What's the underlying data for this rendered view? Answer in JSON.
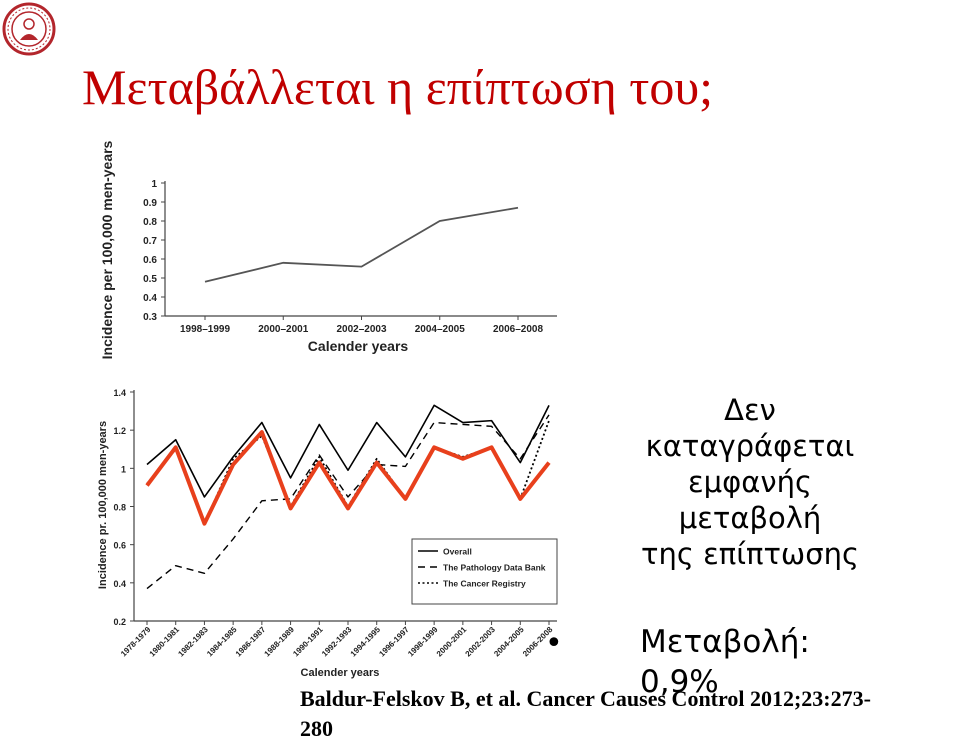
{
  "slide": {
    "title": "Μεταβάλλεται η επίπτωση του;",
    "note_lines": [
      "Δεν",
      "καταγράφεται",
      "εμφανής",
      "μεταβολή",
      "της επίπτωσης"
    ],
    "metric_label": "Μεταβολή:",
    "metric_value": "0,9%",
    "citation_line1": "Baldur-Felskov B, et al. Cancer Causes Control 2012;23:273-",
    "citation_line2": "280"
  },
  "chart_data": [
    {
      "type": "line",
      "title": "",
      "xlabel": "Calender years",
      "ylabel": "Incidence per 100,000 men-years",
      "categories": [
        "1998–1999",
        "2000–2001",
        "2002–2003",
        "2004–2005",
        "2006–2008"
      ],
      "series": [
        {
          "values": [
            0.48,
            0.58,
            0.56,
            0.8,
            0.87
          ],
          "color": "#555555"
        }
      ],
      "ylim": [
        0.3,
        1.0
      ],
      "yticks": [
        "0.3",
        "0.4",
        "0.5",
        "0.6",
        "0.7",
        "0.8",
        "0.9",
        "1"
      ],
      "grid": false
    },
    {
      "type": "line",
      "title": "",
      "xlabel": "Calender years",
      "ylabel": "Incidence pr. 100,000 men-years",
      "categories": [
        "1978-1979",
        "1980-1981",
        "1982-1983",
        "1984-1985",
        "1986-1987",
        "1988-1989",
        "1990-1991",
        "1992-1993",
        "1994-1995",
        "1996-1997",
        "1998-1999",
        "2000-2001",
        "2002-2003",
        "2004-2005",
        "2006-2008"
      ],
      "series": [
        {
          "name": "Overall",
          "style": "solid",
          "color": "#000000",
          "values": [
            1.02,
            1.15,
            0.85,
            1.06,
            1.24,
            0.95,
            1.23,
            0.99,
            1.24,
            1.06,
            1.33,
            1.24,
            1.25,
            1.03,
            1.33
          ]
        },
        {
          "name": "The Pathology Data Bank",
          "style": "dashed",
          "color": "#000000",
          "values": [
            0.37,
            0.49,
            0.45,
            0.63,
            0.83,
            0.84,
            1.07,
            0.85,
            1.02,
            1.01,
            1.24,
            1.23,
            1.22,
            1.05,
            1.28
          ]
        },
        {
          "name": "The Cancer Registry",
          "style": "dotted",
          "color": "#000000",
          "values": [
            0.92,
            1.1,
            0.71,
            1.05,
            1.17,
            0.8,
            1.06,
            0.8,
            1.05,
            0.84,
            1.11,
            1.06,
            1.11,
            0.84,
            1.25
          ]
        },
        {
          "style": "thick",
          "color": "#e8401c",
          "values": [
            0.91,
            1.11,
            0.71,
            1.02,
            1.19,
            0.79,
            1.03,
            0.79,
            1.03,
            0.84,
            1.11,
            1.05,
            1.11,
            0.84,
            1.03
          ]
        }
      ],
      "ylim": [
        0.2,
        1.4
      ],
      "yticks": [
        "0.2",
        "0.4",
        "0.6",
        "0.8",
        "1",
        "1.2",
        "1.4"
      ],
      "legend_position": "bottom-right",
      "grid": false
    }
  ]
}
